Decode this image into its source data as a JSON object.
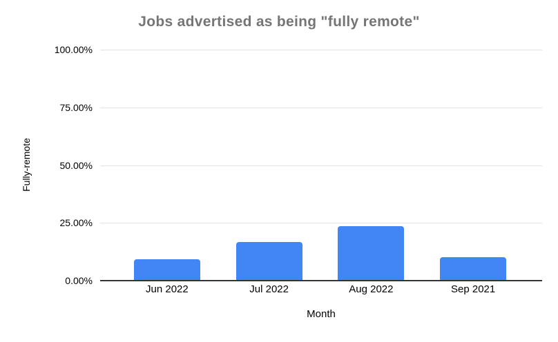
{
  "chart_data": {
    "type": "bar",
    "title": "Jobs advertised as being \"fully remote\"",
    "xlabel": "Month",
    "ylabel": "Fully-remote",
    "categories": [
      "Jun 2022",
      "Jul 2022",
      "Aug 2022",
      "Sep 2021"
    ],
    "values": [
      9.3,
      16.7,
      23.6,
      10.1
    ],
    "ylim": [
      0,
      100
    ],
    "yticks": [
      {
        "value": 0,
        "label": "0.00%"
      },
      {
        "value": 25,
        "label": "25.00%"
      },
      {
        "value": 50,
        "label": "50.00%"
      },
      {
        "value": 75,
        "label": "75.00%"
      },
      {
        "value": 100,
        "label": "100.00%"
      }
    ],
    "grid": true,
    "legend": false,
    "bar_color": "#4285f4"
  },
  "colors": {
    "bar": "#4285f4",
    "title_text": "#757575",
    "axis_line": "#333333",
    "gridline": "#e3e3e3",
    "tick_text": "#000000",
    "background": "#ffffff"
  }
}
